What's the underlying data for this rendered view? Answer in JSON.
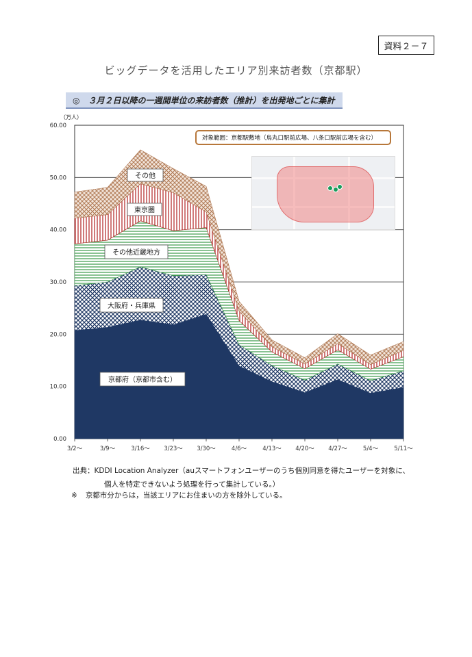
{
  "document": {
    "badge": "資料２－７",
    "title": "ビッグデータを活用したエリア別来訪者数（京都駅）",
    "section_header": "◎　３月２日以降の一週間単位の来訪者数（推計）を出発地ごとに集計"
  },
  "chart_data": {
    "type": "area",
    "stacked": true,
    "unit": "（万人）",
    "x": [
      "3/2～",
      "3/9～",
      "3/16～",
      "3/23～",
      "3/30～",
      "4/6～",
      "4/13～",
      "4/20～",
      "4/27～",
      "5/4～",
      "5/11～"
    ],
    "yticks": [
      "0.00",
      "10.00",
      "20.00",
      "30.00",
      "40.00",
      "50.00",
      "60.00"
    ],
    "ylim": [
      0,
      60
    ],
    "grid": true,
    "series": [
      {
        "name": "京都府（京都市含む）",
        "color": "#1f3864",
        "pattern": "solid",
        "values": [
          20.7,
          21.3,
          22.7,
          21.8,
          23.8,
          13.9,
          10.9,
          8.8,
          11.3,
          8.7,
          9.8
        ]
      },
      {
        "name": "大阪府・兵庫県",
        "color": "#1f3864",
        "pattern": "crosshatch",
        "values": [
          8.6,
          8.7,
          10.2,
          9.4,
          7.6,
          4.1,
          3.1,
          2.4,
          3.0,
          2.4,
          3.2
        ]
      },
      {
        "name": "その他近畿地方",
        "color": "#3a9a4a",
        "pattern": "horizontal",
        "values": [
          8.0,
          8.0,
          8.8,
          8.6,
          9.0,
          4.6,
          2.6,
          2.2,
          2.7,
          2.2,
          2.7
        ]
      },
      {
        "name": "東京圏",
        "color": "#b02020",
        "pattern": "vertical",
        "values": [
          4.9,
          4.9,
          7.1,
          7.3,
          3.0,
          1.8,
          1.0,
          0.9,
          1.2,
          0.9,
          1.2
        ]
      },
      {
        "name": "その他",
        "color": "#b07a55",
        "pattern": "diagonal",
        "values": [
          5.0,
          5.2,
          6.5,
          4.6,
          4.9,
          1.9,
          1.3,
          1.2,
          1.9,
          1.8,
          1.7
        ]
      }
    ]
  },
  "coverage_note": "対象範囲：京都駅敷地（烏丸口駅前広場、八条口駅前広場を含む）",
  "footer": {
    "source_line1": "出典：KDDI Location Analyzer（auスマートフォンユーザーのうち個別同意を得たユーザーを対象に、",
    "source_line2": "個人を特定できないよう処理を行って集計している。）",
    "note_mark": "※",
    "note_text": "京都市分からは，当該エリアにお住まいの方を除外している。"
  }
}
